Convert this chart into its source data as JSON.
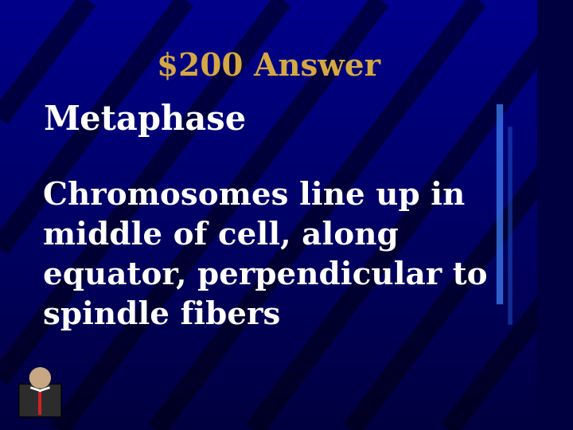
{
  "title": "$200 Answer",
  "title_color": "#D4A843",
  "subtitle": "Metaphase",
  "subtitle_color": "#FFFFFF",
  "body_text": "Chromosomes line up in\nmiddle of cell, along\nequator, perpendicular to\nspindle fibers",
  "body_color": "#FFFFFF",
  "bg_color_top": "#00008B",
  "bg_color_bottom": "#000040",
  "title_fontsize": 28,
  "subtitle_fontsize": 30,
  "body_fontsize": 28,
  "stripe_color": "#000020",
  "stripe_alpha": 0.6
}
